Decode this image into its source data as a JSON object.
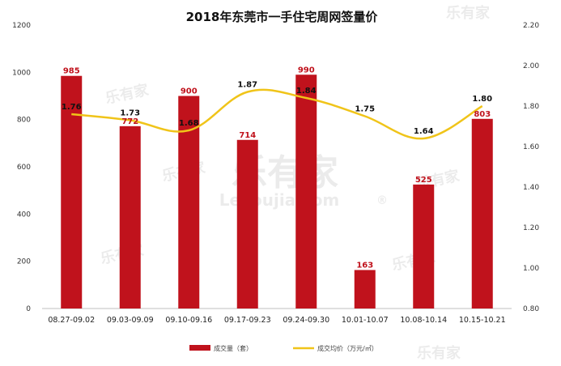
{
  "chart_data": {
    "type": "bar",
    "title": "2018年东莞市一手住宅周网签量价",
    "categories": [
      "08.27-09.02",
      "09.03-09.09",
      "09.10-09.16",
      "09.17-09.23",
      "09.24-09.30",
      "10.01-10.07",
      "10.08-10.14",
      "10.15-10.21"
    ],
    "series": [
      {
        "name": "成交量（套）",
        "type": "bar",
        "axis": "left",
        "color": "#c0121c",
        "values": [
          985,
          772,
          900,
          714,
          990,
          163,
          525,
          803
        ]
      },
      {
        "name": "成交均价（万元/㎡）",
        "type": "line",
        "axis": "right",
        "color": "#f0c419",
        "values": [
          1.76,
          1.73,
          1.68,
          1.87,
          1.84,
          1.75,
          1.64,
          1.8
        ]
      }
    ],
    "left_axis": {
      "min": 0,
      "max": 1200,
      "step": 200,
      "tick_labels": [
        "0",
        "200",
        "400",
        "600",
        "800",
        "1000",
        "1200"
      ]
    },
    "right_axis": {
      "min": 0.8,
      "max": 2.2,
      "step": 0.2,
      "tick_labels": [
        "0.80",
        "1.00",
        "1.20",
        "1.40",
        "1.60",
        "1.80",
        "2.00",
        "2.20"
      ]
    },
    "grid": false,
    "legend_position": "bottom",
    "bar_label_color": "#c0121c",
    "line_label_color": "#111111"
  },
  "watermark": {
    "brand": "乐有家",
    "site": "Leyoujia.com",
    "mark": "®"
  }
}
